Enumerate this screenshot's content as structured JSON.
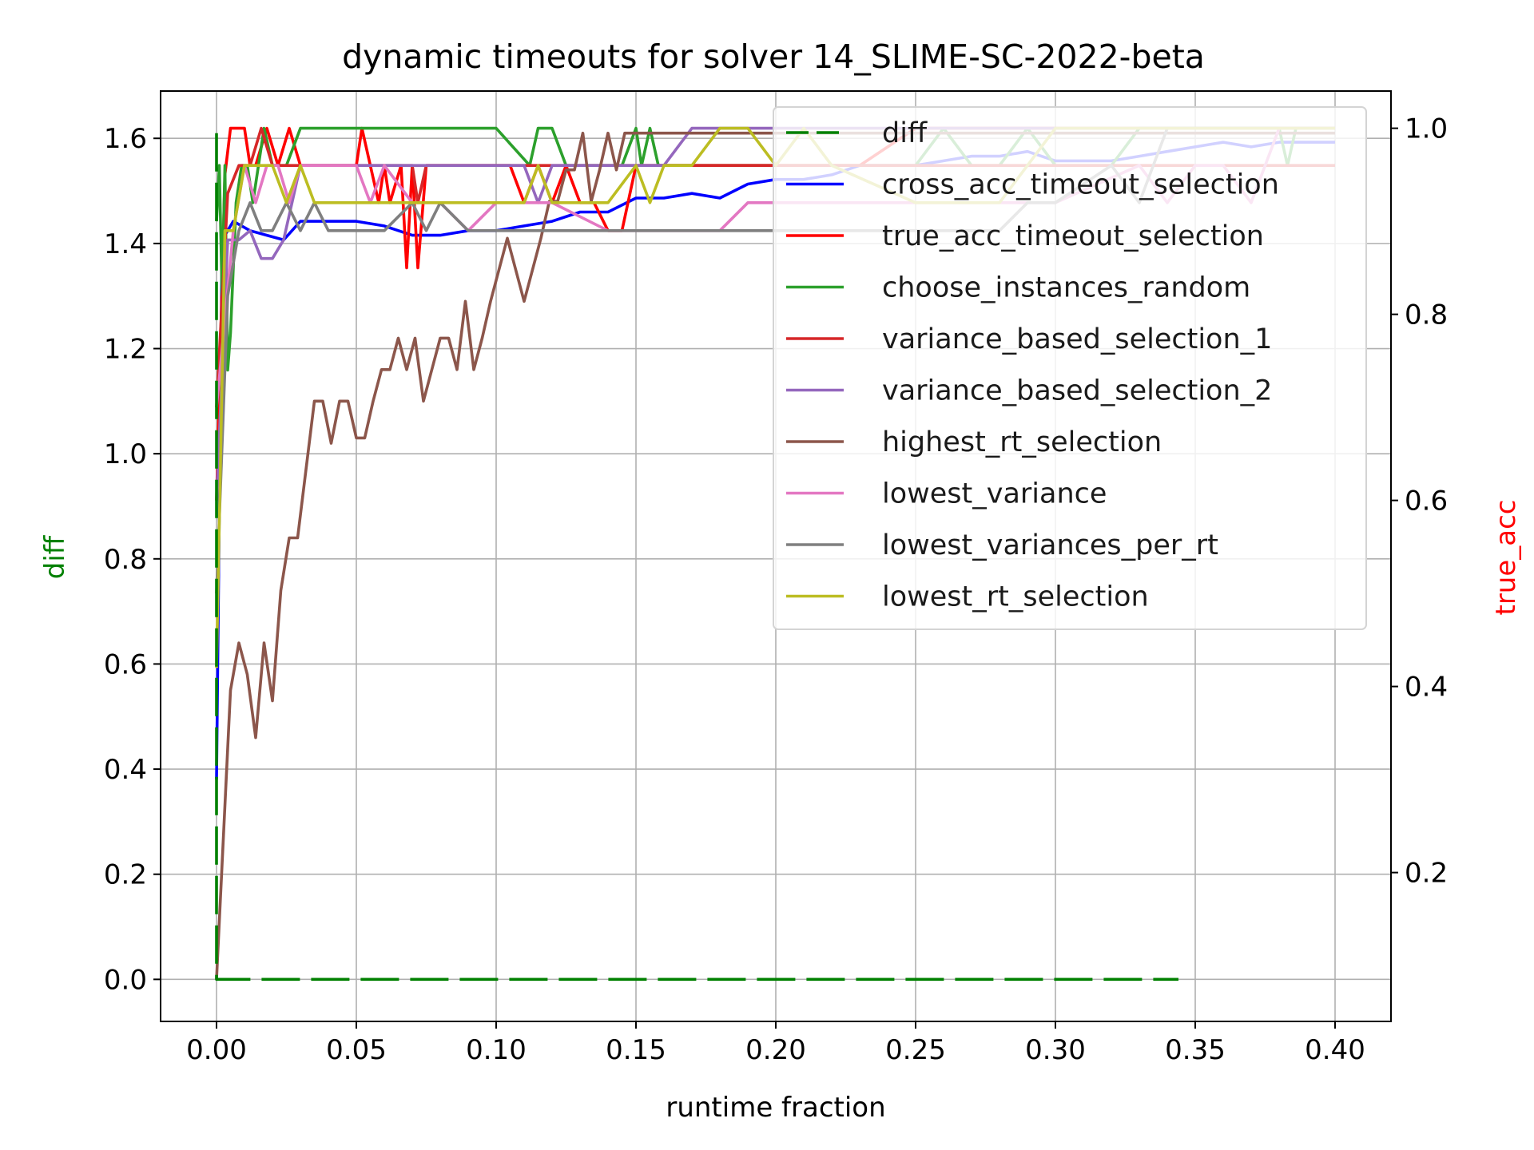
{
  "chart_data": {
    "type": "line",
    "title": "dynamic timeouts for solver 14_SLIME-SC-2022-beta",
    "xlabel": "runtime fraction",
    "ylabel": "diff",
    "ylabel_right": "true_acc",
    "xlim": [
      -0.02,
      0.42
    ],
    "ylim": [
      -0.08,
      1.69
    ],
    "ylim_right": [
      0.04,
      1.04
    ],
    "x_ticks": [
      "0.00",
      "0.05",
      "0.10",
      "0.15",
      "0.20",
      "0.25",
      "0.30",
      "0.35",
      "0.40"
    ],
    "y_ticks": [
      "0.0",
      "0.2",
      "0.4",
      "0.6",
      "0.8",
      "1.0",
      "1.2",
      "1.4",
      "1.6"
    ],
    "y_ticks_right": [
      "0.2",
      "0.4",
      "0.6",
      "0.8",
      "1.0"
    ],
    "grid": true,
    "legend_position": "upper-right",
    "colors": {
      "axis_left_label": "#008000",
      "axis_right_label": "#ff0000"
    },
    "series": [
      {
        "name": "diff",
        "axis": "left",
        "color": "#008000",
        "dashed": true,
        "x": [
          0.0,
          0.0,
          0.14,
          0.144,
          0.179,
          0.19,
          0.238,
          0.243,
          0.255,
          0.263,
          0.295,
          0.313,
          0.322,
          0.331,
          0.344
        ],
        "y": [
          1.61,
          0.0,
          0.0,
          0.0,
          0.0,
          0.0,
          0.0,
          0.0,
          0.0,
          0.0,
          0.0,
          0.0,
          0.0,
          0.0,
          0.0
        ]
      },
      {
        "name": "cross_acc_timeout_selection",
        "axis": "right",
        "color": "#0000ff",
        "x": [
          0.0,
          0.002,
          0.006,
          0.012,
          0.018,
          0.024,
          0.03,
          0.04,
          0.05,
          0.06,
          0.07,
          0.08,
          0.09,
          0.1,
          0.11,
          0.12,
          0.13,
          0.14,
          0.15,
          0.16,
          0.17,
          0.18,
          0.19,
          0.2,
          0.21,
          0.22,
          0.23,
          0.24,
          0.25,
          0.26,
          0.27,
          0.28,
          0.29,
          0.3,
          0.31,
          0.32,
          0.33,
          0.34,
          0.35,
          0.36,
          0.37,
          0.38,
          0.39,
          0.4
        ],
        "y": [
          0.3,
          0.88,
          0.9,
          0.89,
          0.885,
          0.88,
          0.9,
          0.9,
          0.9,
          0.895,
          0.885,
          0.885,
          0.89,
          0.89,
          0.895,
          0.9,
          0.91,
          0.91,
          0.925,
          0.925,
          0.93,
          0.925,
          0.94,
          0.945,
          0.945,
          0.95,
          0.96,
          0.96,
          0.96,
          0.965,
          0.97,
          0.97,
          0.975,
          0.965,
          0.965,
          0.965,
          0.97,
          0.975,
          0.98,
          0.985,
          0.98,
          0.985,
          0.985,
          0.985
        ]
      },
      {
        "name": "true_acc_timeout_selection",
        "axis": "right",
        "color": "#ff0000",
        "x": [
          0.0,
          0.003,
          0.005,
          0.008,
          0.01,
          0.012,
          0.014,
          0.018,
          0.022,
          0.026,
          0.03,
          0.035,
          0.04,
          0.05,
          0.052,
          0.055,
          0.058,
          0.06,
          0.062,
          0.066,
          0.068,
          0.07,
          0.072,
          0.075,
          0.08,
          0.1,
          0.105,
          0.11,
          0.115,
          0.12,
          0.125,
          0.13,
          0.135,
          0.14,
          0.145,
          0.15,
          0.16,
          0.18,
          0.2,
          0.21,
          0.23,
          0.25,
          0.3,
          0.35,
          0.4
        ],
        "y": [
          0.6,
          0.95,
          1.0,
          1.0,
          1.0,
          0.96,
          0.96,
          1.0,
          0.96,
          1.0,
          0.96,
          0.96,
          0.96,
          0.96,
          1.0,
          0.96,
          0.92,
          0.96,
          0.92,
          0.96,
          0.85,
          0.96,
          0.85,
          0.96,
          0.96,
          0.96,
          0.96,
          0.92,
          0.96,
          0.92,
          0.96,
          0.92,
          0.92,
          0.89,
          0.89,
          0.96,
          0.96,
          0.96,
          0.96,
          0.96,
          0.96,
          1.0,
          1.0,
          1.0,
          1.0
        ]
      },
      {
        "name": "choose_instances_random",
        "axis": "right",
        "color": "#2ca02c",
        "x": [
          0.0,
          0.001,
          0.002,
          0.003,
          0.004,
          0.005,
          0.007,
          0.009,
          0.011,
          0.013,
          0.015,
          0.017,
          0.02,
          0.025,
          0.03,
          0.05,
          0.08,
          0.1,
          0.112,
          0.115,
          0.12,
          0.125,
          0.14,
          0.145,
          0.15,
          0.152,
          0.155,
          0.158,
          0.16,
          0.2,
          0.25,
          0.26,
          0.27,
          0.28,
          0.29,
          0.3,
          0.32,
          0.33,
          0.35,
          0.36,
          0.37,
          0.38,
          0.383,
          0.386,
          0.4
        ],
        "y": [
          0.9,
          0.96,
          0.82,
          0.96,
          0.74,
          0.78,
          0.92,
          0.96,
          0.96,
          0.92,
          0.96,
          1.0,
          0.96,
          0.96,
          1.0,
          1.0,
          1.0,
          1.0,
          0.96,
          1.0,
          1.0,
          0.96,
          0.96,
          0.96,
          1.0,
          0.96,
          1.0,
          0.96,
          0.96,
          0.96,
          0.96,
          1.0,
          0.96,
          0.96,
          1.0,
          0.96,
          0.96,
          1.0,
          1.0,
          1.0,
          1.0,
          1.0,
          0.96,
          1.0,
          1.0
        ]
      },
      {
        "name": "variance_based_selection_1",
        "axis": "right",
        "color": "#d62728",
        "x": [
          0.0,
          0.004,
          0.008,
          0.012,
          0.016,
          0.02,
          0.025,
          0.03,
          0.035,
          0.04,
          0.05,
          0.06,
          0.07,
          0.072,
          0.075,
          0.08,
          0.1,
          0.12,
          0.13,
          0.14,
          0.145,
          0.15,
          0.16,
          0.18,
          0.2,
          0.22,
          0.24,
          0.26,
          0.3,
          0.35,
          0.4
        ],
        "y": [
          0.7,
          0.93,
          0.96,
          0.96,
          1.0,
          0.96,
          0.96,
          0.96,
          0.96,
          0.96,
          0.96,
          0.96,
          0.96,
          0.92,
          0.96,
          0.96,
          0.96,
          0.96,
          0.96,
          0.96,
          0.96,
          0.96,
          0.96,
          0.96,
          0.96,
          0.96,
          0.96,
          0.96,
          0.96,
          0.96,
          0.96
        ]
      },
      {
        "name": "variance_based_selection_2",
        "axis": "right",
        "color": "#9467bd",
        "x": [
          0.0,
          0.004,
          0.008,
          0.012,
          0.016,
          0.02,
          0.024,
          0.03,
          0.04,
          0.06,
          0.08,
          0.1,
          0.11,
          0.115,
          0.12,
          0.13,
          0.14,
          0.15,
          0.16,
          0.17,
          0.18,
          0.2,
          0.22,
          0.25,
          0.3,
          0.35,
          0.4
        ],
        "y": [
          0.6,
          0.88,
          0.88,
          0.89,
          0.86,
          0.86,
          0.88,
          0.96,
          0.96,
          0.96,
          0.96,
          0.96,
          0.96,
          0.92,
          0.96,
          0.96,
          0.96,
          0.96,
          0.96,
          1.0,
          1.0,
          1.0,
          1.0,
          1.0,
          1.0,
          1.0,
          1.0
        ]
      },
      {
        "name": "highest_rt_selection",
        "axis": "left",
        "color": "#8c564b",
        "x": [
          0.0,
          0.005,
          0.008,
          0.011,
          0.014,
          0.017,
          0.02,
          0.023,
          0.026,
          0.029,
          0.032,
          0.035,
          0.038,
          0.041,
          0.044,
          0.047,
          0.05,
          0.053,
          0.056,
          0.059,
          0.062,
          0.065,
          0.068,
          0.071,
          0.074,
          0.077,
          0.08,
          0.083,
          0.086,
          0.089,
          0.092,
          0.095,
          0.098,
          0.101,
          0.104,
          0.107,
          0.11,
          0.113,
          0.116,
          0.119,
          0.122,
          0.125,
          0.128,
          0.131,
          0.134,
          0.137,
          0.14,
          0.143,
          0.146,
          0.149,
          0.152,
          0.155,
          0.158,
          0.161,
          0.164,
          0.167,
          0.17,
          0.173,
          0.176,
          0.18,
          0.19,
          0.2,
          0.21,
          0.22,
          0.25,
          0.3,
          0.35,
          0.4
        ],
        "y": [
          0.0,
          0.55,
          0.64,
          0.58,
          0.46,
          0.64,
          0.53,
          0.74,
          0.84,
          0.84,
          0.97,
          1.1,
          1.1,
          1.02,
          1.1,
          1.1,
          1.03,
          1.03,
          1.1,
          1.16,
          1.16,
          1.22,
          1.16,
          1.22,
          1.1,
          1.16,
          1.22,
          1.22,
          1.16,
          1.29,
          1.16,
          1.22,
          1.29,
          1.35,
          1.41,
          1.35,
          1.29,
          1.35,
          1.41,
          1.48,
          1.48,
          1.54,
          1.54,
          1.61,
          1.48,
          1.54,
          1.61,
          1.54,
          1.61,
          1.61,
          1.61,
          1.61,
          1.61,
          1.61,
          1.61,
          1.61,
          1.61,
          1.61,
          1.61,
          1.61,
          1.61,
          1.61,
          1.61,
          1.61,
          1.61,
          1.61,
          1.61,
          1.61
        ]
      },
      {
        "name": "lowest_variance",
        "axis": "right",
        "color": "#e377c2",
        "x": [
          0.0,
          0.006,
          0.01,
          0.014,
          0.018,
          0.022,
          0.026,
          0.03,
          0.04,
          0.05,
          0.055,
          0.06,
          0.07,
          0.08,
          0.09,
          0.1,
          0.12,
          0.14,
          0.16,
          0.18,
          0.19,
          0.2,
          0.25,
          0.3,
          0.33,
          0.34,
          0.35,
          0.36,
          0.37,
          0.38,
          0.4
        ],
        "y": [
          0.7,
          0.89,
          0.96,
          0.92,
          0.96,
          0.96,
          0.92,
          0.96,
          0.96,
          0.96,
          0.92,
          0.96,
          0.92,
          0.92,
          0.89,
          0.92,
          0.92,
          0.89,
          0.89,
          0.89,
          0.92,
          0.92,
          0.92,
          0.92,
          0.96,
          0.92,
          0.96,
          0.96,
          0.92,
          1.0,
          1.0
        ]
      },
      {
        "name": "lowest_variances_per_rt",
        "axis": "right",
        "color": "#7f7f7f",
        "x": [
          0.0,
          0.004,
          0.008,
          0.012,
          0.016,
          0.02,
          0.025,
          0.03,
          0.035,
          0.04,
          0.05,
          0.06,
          0.07,
          0.075,
          0.08,
          0.09,
          0.1,
          0.12,
          0.13,
          0.14,
          0.15,
          0.2,
          0.25,
          0.28,
          0.29,
          0.3,
          0.32,
          0.33,
          0.34,
          0.35,
          0.4
        ],
        "y": [
          0.5,
          0.82,
          0.89,
          0.92,
          0.89,
          0.89,
          0.92,
          0.89,
          0.92,
          0.89,
          0.89,
          0.89,
          0.92,
          0.89,
          0.92,
          0.89,
          0.89,
          0.89,
          0.89,
          0.89,
          0.89,
          0.89,
          0.89,
          0.89,
          0.92,
          0.92,
          0.96,
          0.92,
          1.0,
          1.0,
          1.0
        ]
      },
      {
        "name": "lowest_rt_selection",
        "axis": "right",
        "color": "#bcbd22",
        "x": [
          0.0,
          0.003,
          0.006,
          0.01,
          0.015,
          0.02,
          0.025,
          0.03,
          0.035,
          0.04,
          0.05,
          0.06,
          0.08,
          0.1,
          0.11,
          0.115,
          0.12,
          0.13,
          0.14,
          0.15,
          0.155,
          0.16,
          0.17,
          0.18,
          0.19,
          0.2,
          0.21,
          0.22,
          0.25,
          0.27,
          0.28,
          0.29,
          0.3,
          0.35,
          0.4
        ],
        "y": [
          0.42,
          0.89,
          0.89,
          0.96,
          0.96,
          0.96,
          0.92,
          0.96,
          0.92,
          0.92,
          0.92,
          0.92,
          0.92,
          0.92,
          0.92,
          0.96,
          0.92,
          0.92,
          0.92,
          0.96,
          0.92,
          0.96,
          0.96,
          1.0,
          1.0,
          0.96,
          1.0,
          0.96,
          0.92,
          0.92,
          0.92,
          0.96,
          1.0,
          1.0,
          1.0
        ]
      }
    ]
  }
}
